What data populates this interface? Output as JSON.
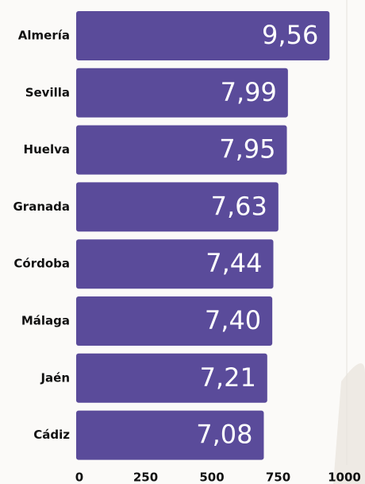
{
  "chart_data": {
    "type": "bar",
    "orientation": "horizontal",
    "categories": [
      "Almería",
      "Sevilla",
      "Huelva",
      "Granada",
      "Córdoba",
      "Málaga",
      "Jaén",
      "Cádiz"
    ],
    "values": [
      956,
      799,
      795,
      763,
      744,
      740,
      721,
      708
    ],
    "value_labels": [
      "9,56",
      "7,99",
      "7,95",
      "7,63",
      "7,44",
      "7,40",
      "7,21",
      "7,08"
    ],
    "color": "#5a4b9a",
    "xlim": [
      0,
      1000
    ],
    "xticks": [
      0,
      250,
      500,
      750,
      1000
    ],
    "grid": false
  }
}
